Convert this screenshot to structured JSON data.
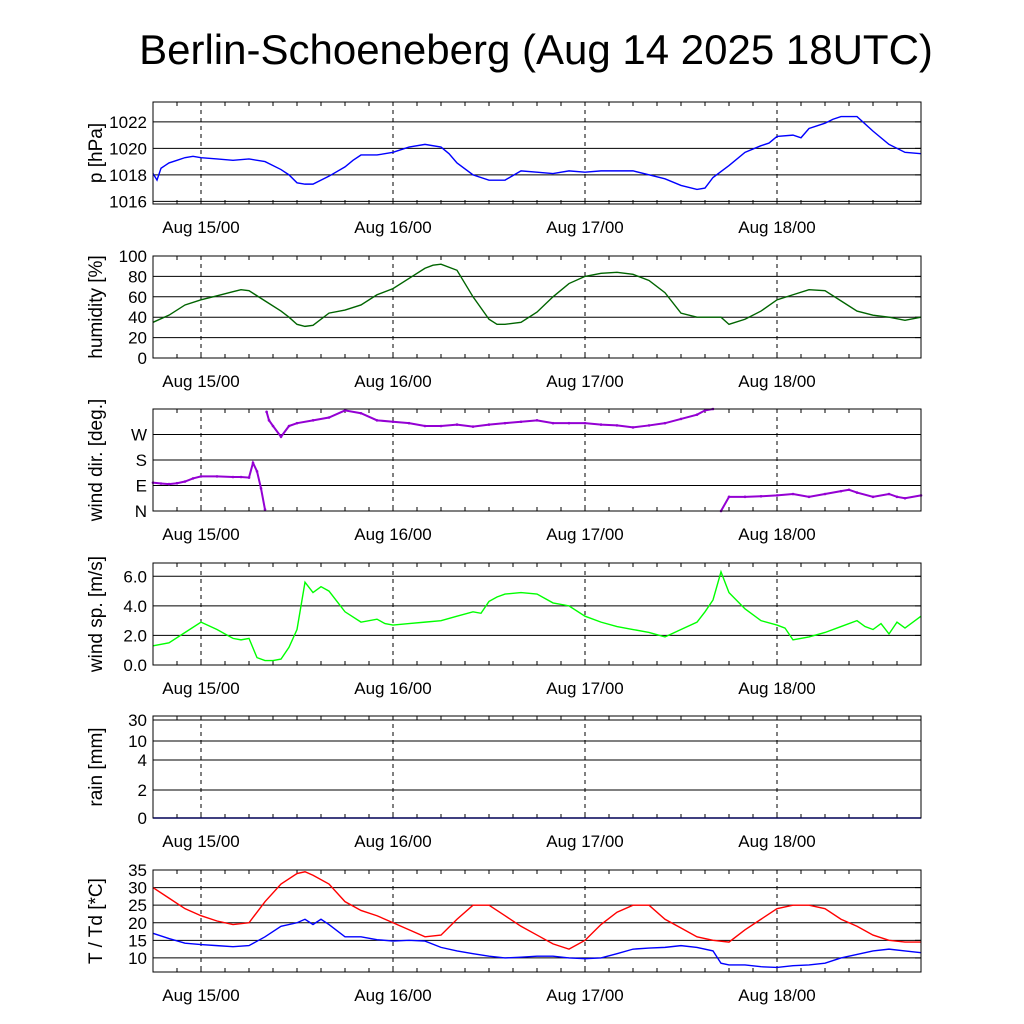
{
  "title": "Berlin-Schoeneberg (Aug 14 2025 18UTC)",
  "colors": {
    "pressure": "#0000ff",
    "humidity": "#006400",
    "wind_dir": "#9400d3",
    "wind_speed": "#00ff00",
    "rain": "#0000ff",
    "temperature": "#ff0000",
    "dewpoint": "#0000ff"
  },
  "chart_data": [
    {
      "type": "line",
      "ylabel": "p [hPa]",
      "xlim": [
        0,
        96
      ],
      "ylim": [
        1015.8,
        1023.5
      ],
      "yticks": [
        1016,
        1018,
        1020,
        1022
      ],
      "ytick_labels": [
        "1016",
        "1018",
        "1020",
        "1022"
      ],
      "xtick_labels": [
        "Aug 15/00",
        "Aug 16/00",
        "Aug 17/00",
        "Aug 18/00"
      ],
      "xticks": [
        6,
        30,
        54,
        78
      ],
      "grid": "horizontal solid at y ticks, vertical dashed at day boundaries",
      "series": [
        {
          "color_key": "pressure",
          "x": [
            0,
            0.5,
            1,
            1.5,
            2,
            3,
            4,
            5,
            6,
            8,
            10,
            12,
            14,
            16,
            17,
            18,
            19,
            20,
            22,
            24,
            25,
            26,
            28,
            30,
            31,
            32,
            34,
            36,
            37,
            38,
            40,
            42,
            43,
            44,
            46,
            48,
            50,
            52,
            54,
            56,
            58,
            60,
            62,
            64,
            66,
            68,
            69,
            70,
            72,
            74,
            76,
            77,
            78,
            80,
            81,
            82,
            84,
            85,
            86,
            88,
            90,
            92,
            94,
            96
          ],
          "y": [
            1018.1,
            1017.6,
            1018.5,
            1018.7,
            1018.9,
            1019.1,
            1019.3,
            1019.4,
            1019.3,
            1019.2,
            1019.1,
            1019.2,
            1019.0,
            1018.4,
            1018.0,
            1017.4,
            1017.3,
            1017.3,
            1017.9,
            1018.6,
            1019.1,
            1019.5,
            1019.5,
            1019.7,
            1019.9,
            1020.1,
            1020.3,
            1020.1,
            1019.6,
            1018.9,
            1018.0,
            1017.6,
            1017.6,
            1017.6,
            1018.3,
            1018.2,
            1018.1,
            1018.3,
            1018.2,
            1018.3,
            1018.3,
            1018.3,
            1018.0,
            1017.7,
            1017.2,
            1016.9,
            1017.0,
            1017.8,
            1018.7,
            1019.7,
            1020.2,
            1020.4,
            1020.9,
            1021.0,
            1020.8,
            1021.5,
            1021.9,
            1022.2,
            1022.4,
            1022.4,
            1021.3,
            1020.3,
            1019.7,
            1019.6
          ]
        }
      ]
    },
    {
      "type": "line",
      "ylabel": "humidity [%]",
      "xlim": [
        0,
        96
      ],
      "ylim": [
        0,
        100
      ],
      "yticks": [
        0,
        20,
        40,
        60,
        80,
        100
      ],
      "ytick_labels": [
        "0",
        "20",
        "40",
        "60",
        "80",
        "100"
      ],
      "xtick_labels": [
        "Aug 15/00",
        "Aug 16/00",
        "Aug 17/00",
        "Aug 18/00"
      ],
      "xticks": [
        6,
        30,
        54,
        78
      ],
      "series": [
        {
          "color_key": "humidity",
          "x": [
            0,
            2,
            4,
            6,
            8,
            10,
            11,
            12,
            14,
            16,
            17,
            18,
            19,
            20,
            22,
            24,
            26,
            28,
            30,
            32,
            34,
            35,
            36,
            38,
            40,
            42,
            43,
            44,
            46,
            48,
            50,
            52,
            54,
            56,
            58,
            60,
            62,
            64,
            66,
            68,
            70,
            71,
            72,
            74,
            76,
            78,
            80,
            82,
            84,
            86,
            88,
            90,
            92,
            94,
            96
          ],
          "y": [
            35,
            42,
            52,
            57,
            61,
            65,
            67,
            66,
            56,
            46,
            40,
            33,
            31,
            32,
            44,
            47,
            52,
            62,
            68,
            78,
            88,
            91,
            92,
            86,
            60,
            38,
            33,
            33,
            35,
            45,
            60,
            73,
            80,
            83,
            84,
            82,
            76,
            64,
            44,
            40,
            40,
            40,
            33,
            38,
            46,
            57,
            62,
            67,
            66,
            56,
            46,
            42,
            40,
            37,
            40
          ]
        }
      ]
    },
    {
      "type": "scatter",
      "ylabel": "wind dir. [deg.]",
      "xlim": [
        0,
        96
      ],
      "ylim": [
        0,
        360
      ],
      "yticks": [
        0,
        90,
        180,
        270
      ],
      "ytick_labels": [
        "N",
        "E",
        "S",
        "W"
      ],
      "xtick_labels": [
        "Aug 15/00",
        "Aug 16/00",
        "Aug 17/00",
        "Aug 18/00"
      ],
      "xticks": [
        6,
        30,
        54,
        78
      ],
      "series": [
        {
          "color_key": "wind_dir",
          "x": [
            0,
            1,
            2,
            3,
            4,
            5,
            6,
            8,
            10,
            11,
            12,
            12.5,
            13,
            13.5,
            14,
            14.2,
            14.5,
            15,
            16,
            17,
            18,
            20,
            22,
            24,
            26,
            28,
            30,
            32,
            34,
            36,
            38,
            40,
            42,
            44,
            46,
            48,
            50,
            52,
            54,
            56,
            58,
            60,
            62,
            64,
            66,
            68,
            69,
            70,
            71,
            72,
            74,
            76,
            78,
            80,
            82,
            84,
            86,
            87,
            88,
            90,
            92,
            93,
            94,
            96
          ],
          "y": [
            100,
            97,
            95,
            98,
            104,
            115,
            122,
            122,
            120,
            120,
            118,
            170,
            140,
            80,
            5,
            350,
            320,
            300,
            262,
            300,
            310,
            320,
            330,
            355,
            345,
            320,
            315,
            310,
            300,
            300,
            305,
            298,
            305,
            310,
            315,
            320,
            310,
            310,
            310,
            305,
            302,
            295,
            302,
            310,
            325,
            340,
            355,
            362,
            0,
            50,
            50,
            52,
            55,
            60,
            50,
            60,
            70,
            75,
            65,
            50,
            60,
            50,
            45,
            55
          ]
        }
      ]
    },
    {
      "type": "line",
      "ylabel": "wind sp. [m/s]",
      "xlim": [
        0,
        96
      ],
      "ylim": [
        0,
        6.9
      ],
      "yticks": [
        0,
        2,
        4,
        6
      ],
      "ytick_labels": [
        "0.0",
        "2.0",
        "4.0",
        "6.0"
      ],
      "xtick_labels": [
        "Aug 15/00",
        "Aug 16/00",
        "Aug 17/00",
        "Aug 18/00"
      ],
      "xticks": [
        6,
        30,
        54,
        78
      ],
      "series": [
        {
          "color_key": "wind_speed",
          "x": [
            0,
            2,
            4,
            6,
            8,
            10,
            11,
            12,
            13,
            14,
            15,
            16,
            17,
            18,
            19,
            20,
            21,
            22,
            23,
            24,
            26,
            28,
            29,
            30,
            32,
            34,
            36,
            38,
            40,
            41,
            42,
            43,
            44,
            46,
            48,
            50,
            52,
            54,
            56,
            58,
            60,
            62,
            64,
            66,
            68,
            69,
            70,
            71,
            72,
            74,
            76,
            78,
            79,
            80,
            82,
            84,
            86,
            88,
            89,
            90,
            91,
            92,
            93,
            94,
            96
          ],
          "y": [
            1.3,
            1.5,
            2.2,
            2.9,
            2.4,
            1.8,
            1.7,
            1.8,
            0.5,
            0.3,
            0.3,
            0.4,
            1.2,
            2.4,
            5.6,
            4.9,
            5.3,
            5.0,
            4.3,
            3.6,
            2.9,
            3.1,
            2.8,
            2.7,
            2.8,
            2.9,
            3.0,
            3.3,
            3.6,
            3.5,
            4.3,
            4.6,
            4.8,
            4.9,
            4.8,
            4.2,
            4.0,
            3.3,
            2.9,
            2.6,
            2.4,
            2.2,
            1.9,
            2.4,
            2.9,
            3.6,
            4.4,
            6.3,
            4.9,
            3.8,
            3.0,
            2.7,
            2.5,
            1.7,
            1.9,
            2.2,
            2.6,
            3.0,
            2.6,
            2.4,
            2.8,
            2.1,
            2.9,
            2.5,
            3.3
          ]
        }
      ]
    },
    {
      "type": "line",
      "ylabel": "rain [mm]",
      "xlim": [
        0,
        96
      ],
      "yticks": [
        0,
        2,
        4,
        10,
        30
      ],
      "ytick_labels": [
        "0",
        "2",
        "4",
        "10",
        "30"
      ],
      "xtick_labels": [
        "Aug 15/00",
        "Aug 16/00",
        "Aug 17/00",
        "Aug 18/00"
      ],
      "xticks": [
        6,
        30,
        54,
        78
      ],
      "series": [
        {
          "color_key": "rain",
          "x": [
            0,
            96
          ],
          "y": [
            0,
            0
          ]
        }
      ]
    },
    {
      "type": "line",
      "ylabel": "T / Td [*C]",
      "xlim": [
        0,
        96
      ],
      "ylim": [
        6,
        35
      ],
      "yticks": [
        10,
        15,
        20,
        25,
        30,
        35
      ],
      "ytick_labels": [
        "10",
        "15",
        "20",
        "25",
        "30",
        "35"
      ],
      "xtick_labels": [
        "Aug 15/00",
        "Aug 16/00",
        "Aug 17/00",
        "Aug 18/00"
      ],
      "xticks": [
        6,
        30,
        54,
        78
      ],
      "series": [
        {
          "color_key": "temperature",
          "x": [
            0,
            2,
            4,
            6,
            8,
            10,
            12,
            14,
            16,
            18,
            19,
            20,
            22,
            24,
            26,
            28,
            30,
            32,
            34,
            36,
            38,
            40,
            42,
            44,
            46,
            48,
            50,
            52,
            54,
            56,
            58,
            60,
            62,
            64,
            66,
            68,
            70,
            72,
            74,
            76,
            78,
            80,
            82,
            84,
            86,
            88,
            90,
            92,
            94,
            96
          ],
          "y": [
            30,
            27,
            24,
            22,
            20.5,
            19.5,
            20,
            26,
            31,
            34,
            34.5,
            33.5,
            31,
            26,
            23.5,
            22,
            20,
            18,
            16,
            16.5,
            21,
            25,
            25,
            22,
            19,
            16.5,
            14,
            12.5,
            15,
            19.5,
            23,
            25,
            25,
            21,
            18.5,
            16,
            15,
            14.5,
            18,
            21,
            24,
            25,
            25,
            24,
            21,
            19,
            16.5,
            15,
            14.5,
            14.5
          ]
        },
        {
          "color_key": "dewpoint",
          "x": [
            0,
            2,
            4,
            6,
            8,
            10,
            12,
            14,
            16,
            18,
            19,
            20,
            21,
            22,
            24,
            26,
            28,
            30,
            32,
            34,
            36,
            38,
            40,
            42,
            44,
            46,
            48,
            50,
            52,
            54,
            56,
            58,
            60,
            62,
            64,
            66,
            68,
            70,
            71,
            72,
            74,
            76,
            78,
            80,
            82,
            84,
            86,
            88,
            90,
            92,
            94,
            96
          ],
          "y": [
            17,
            15.5,
            14.2,
            13.8,
            13.5,
            13.2,
            13.5,
            16,
            19,
            20,
            21,
            19.5,
            21,
            19.5,
            16,
            16,
            15.2,
            14.8,
            15,
            14.8,
            13,
            12,
            11.2,
            10.5,
            10,
            10.2,
            10.5,
            10.5,
            10,
            9.8,
            10,
            11.2,
            12.5,
            12.8,
            13,
            13.5,
            13,
            12,
            8.5,
            8,
            8,
            7.5,
            7.3,
            7.8,
            8,
            8.5,
            10,
            11,
            12,
            12.5,
            12,
            11.5
          ]
        }
      ]
    }
  ]
}
